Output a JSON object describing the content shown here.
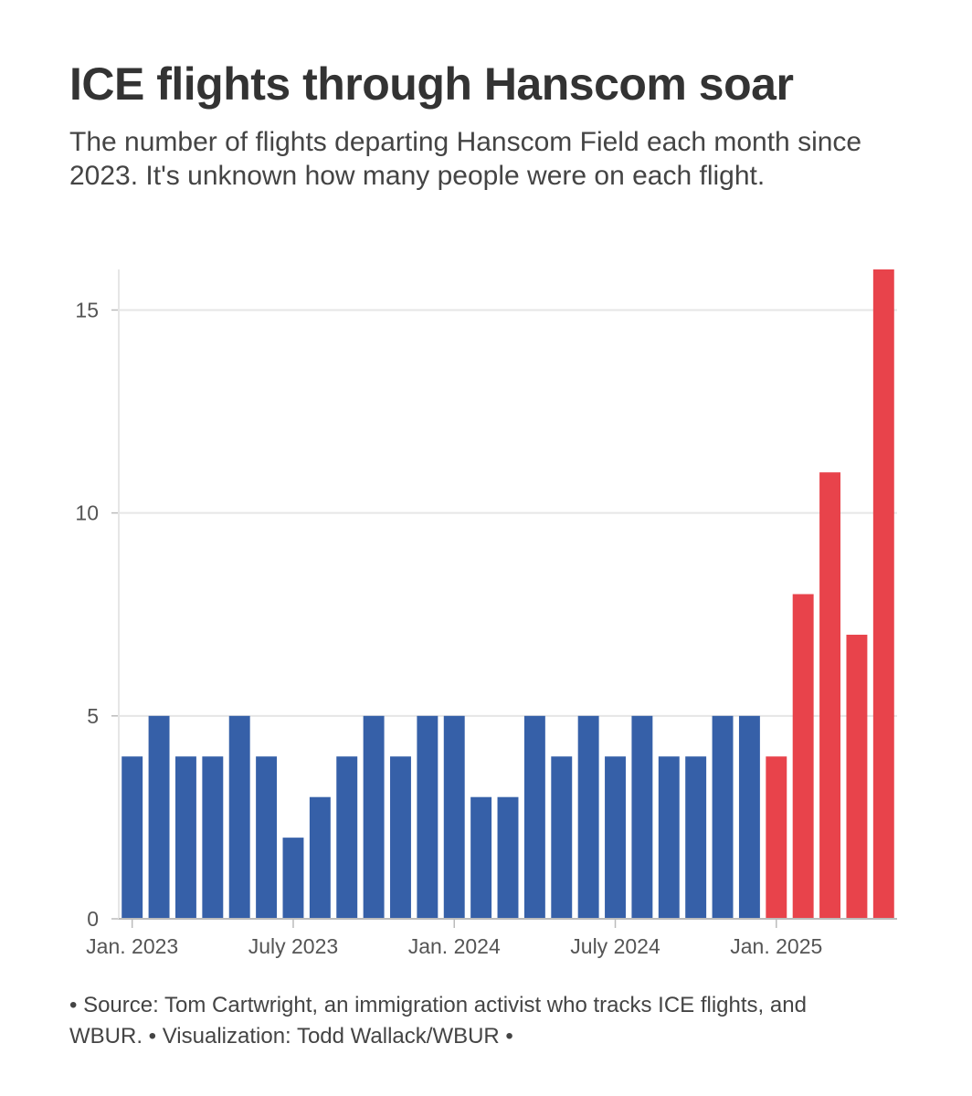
{
  "title": "ICE flights through Hanscom soar",
  "subtitle": "The number of flights departing Hanscom Field each month since 2023. It's unknown how many people were on each flight.",
  "footer": "• Source: Tom Cartwright, an immigration activist who tracks ICE flights, and WBUR. • Visualization: Todd Wallack/WBUR •",
  "colors": {
    "before_2025": "#3660a8",
    "from_2025": "#e8434b",
    "grid": "#e6e6e6",
    "axis": "#bbbbbb"
  },
  "chart_data": {
    "type": "bar",
    "title": "ICE flights through Hanscom soar",
    "xlabel": "",
    "ylabel": "",
    "ylim": [
      0,
      16
    ],
    "y_ticks": [
      0,
      5,
      10,
      15
    ],
    "x_ticks": [
      {
        "label": "Jan. 2023",
        "index": 0
      },
      {
        "label": "July 2023",
        "index": 6
      },
      {
        "label": "Jan. 2024",
        "index": 12
      },
      {
        "label": "July 2024",
        "index": 18
      },
      {
        "label": "Jan. 2025",
        "index": 24
      }
    ],
    "categories": [
      "Jan 2023",
      "Feb 2023",
      "Mar 2023",
      "Apr 2023",
      "May 2023",
      "Jun 2023",
      "Jul 2023",
      "Aug 2023",
      "Sep 2023",
      "Oct 2023",
      "Nov 2023",
      "Dec 2023",
      "Jan 2024",
      "Feb 2024",
      "Mar 2024",
      "Apr 2024",
      "May 2024",
      "Jun 2024",
      "Jul 2024",
      "Aug 2024",
      "Sep 2024",
      "Oct 2024",
      "Nov 2024",
      "Dec 2024",
      "Jan 2025",
      "Feb 2025",
      "Mar 2025",
      "Apr 2025",
      "May 2025"
    ],
    "values": [
      4,
      5,
      4,
      4,
      5,
      4,
      2,
      3,
      4,
      5,
      4,
      5,
      5,
      3,
      3,
      5,
      4,
      5,
      4,
      5,
      4,
      4,
      5,
      5,
      4,
      8,
      11,
      7,
      16
    ],
    "highlight_from_index": 24,
    "grid": true
  }
}
